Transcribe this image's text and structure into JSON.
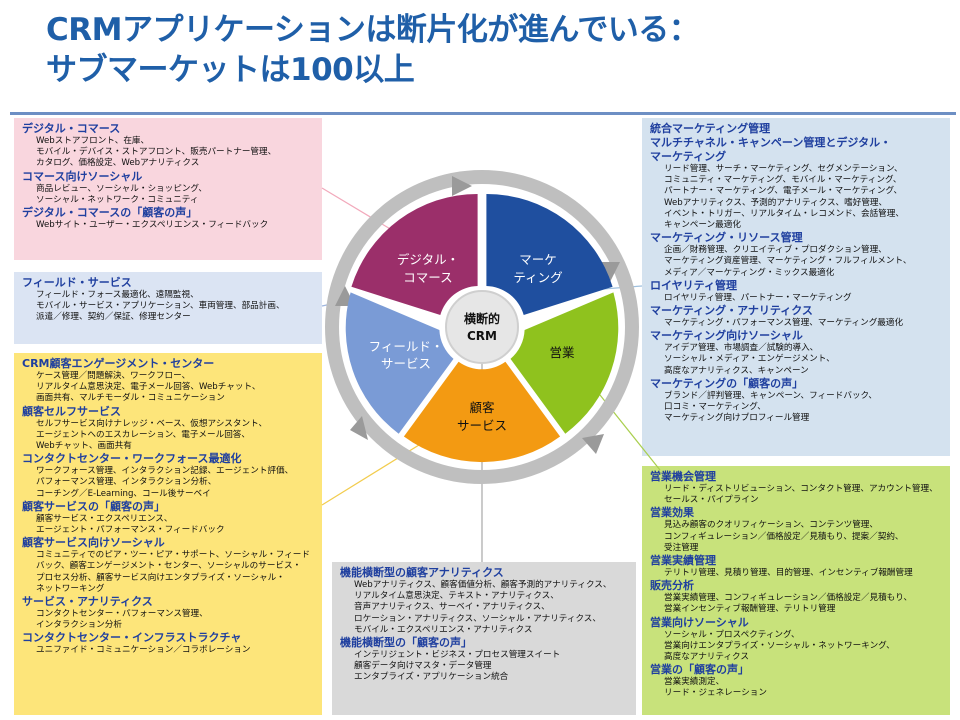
{
  "title": {
    "line1": "CRMアプリケーションは断片化が進んでいる：",
    "line2": "サブマーケットは100以上"
  },
  "colors": {
    "title": "#1f5fa8",
    "heading": "#1f3f9f",
    "digital": "#9b2f6a",
    "marketing": "#1f4f9f",
    "sales": "#8fc21e",
    "service": "#f39a12",
    "field": "#7a9bd6",
    "box_digital": "#f9d6de",
    "box_marketing": "#d4e2ef",
    "box_field": "#dbe4f3",
    "box_service": "#fde57a",
    "box_sales": "#c8e27b",
    "box_analytics": "#d9d9d9"
  },
  "wheel": {
    "center_line1": "横断的",
    "center_line2": "CRM",
    "digital_line1": "デジタル・",
    "digital_line2": "コマース",
    "marketing_line1": "マーケ",
    "marketing_line2": "ティング",
    "sales": "営業",
    "service_line1": "顧客",
    "service_line2": "サービス",
    "field_line1": "フィールド・",
    "field_line2": "サービス"
  },
  "boxes": {
    "digital": {
      "h1": "デジタル・コマース",
      "l1": "Webストアフロント、在庫、",
      "l2": "モバイル・デバイス・ストアフロント、販売パートナー管理、",
      "l3": "カタログ、価格設定、Webアナリティクス",
      "h2": "コマース向けソーシャル",
      "l4": "商品レビュー、ソーシャル・ショッピング、",
      "l5": "ソーシャル・ネットワーク・コミュニティ",
      "h3": "デジタル・コマースの「顧客の声」",
      "l6": "Webサイト・ユーザー・エクスペリエンス・フィードバック"
    },
    "field": {
      "h1": "フィールド・サービス",
      "l1": "フィールド・フォース最適化、遠隔監視、",
      "l2": "モバイル・サービス・アプリケーション、車両管理、部品計画、",
      "l3": "派遣／修理、契約／保証、修理センター"
    },
    "service": {
      "h1": "CRM顧客エンゲージメント・センター",
      "l1": "ケース管理／問題解決、ワークフロー、",
      "l2": "リアルタイム意思決定、電子メール回答、Webチャット、",
      "l3": "画面共有、マルチモーダル・コミュニケーション",
      "h2": "顧客セルフサービス",
      "l4": "セルフサービス向けナレッジ・ベース、仮想アシスタント、",
      "l5": "エージェントへのエスカレーション、電子メール回答、",
      "l6": "Webチャット、画面共有",
      "h3": "コンタクトセンター・ワークフォース最適化",
      "l7": "ワークフォース管理、インタラクション記録、エージェント評価、",
      "l8": "パフォーマンス管理、インタラクション分析、",
      "l9": "コーチング／E-Learning、コール後サーベイ",
      "h4": "顧客サービスの「顧客の声」",
      "l10": "顧客サービス・エクスペリエンス、",
      "l11": "エージェント・パフォーマンス・フィードバック",
      "h5": "顧客サービス向けソーシャル",
      "l12": "コミュニティでのピア・ツー・ピア・サポート、ソーシャル・フィード",
      "l13": "バック、顧客エンゲージメント・センター、ソーシャルのサービス・",
      "l14": "プロセス分析、顧客サービス向けエンタプライズ・ソーシャル・",
      "l15": "ネットワーキング",
      "h6": "サービス・アナリティクス",
      "l16": "コンタクトセンター・パフォーマンス管理、",
      "l17": "インタラクション分析",
      "h7": "コンタクトセンター・インフラストラクチャ",
      "l18": "ユニファイド・コミュニケーション／コラボレーション"
    },
    "analytics": {
      "h1": "機能横断型の顧客アナリティクス",
      "l1": "Webアナリティクス、顧客価値分析、顧客予測的アナリティクス、",
      "l2": "リアルタイム意思決定、テキスト・アナリティクス、",
      "l3": "音声アナリティクス、サーベイ・アナリティクス、",
      "l4": "ロケーション・アナリティクス、ソーシャル・アナリティクス、",
      "l5": "モバイル・エクスペリエンス・アナリティクス",
      "h2": "機能横断型の「顧客の声」",
      "l6": "インテリジェント・ビジネス・プロセス管理スイート",
      "l7": "顧客データ向けマスタ・データ管理",
      "l8": "エンタプライズ・アプリケーション統合"
    },
    "marketing": {
      "h1": "統合マーケティング管理",
      "h2a": "マルチチャネル・キャンペーン管理とデジタル・",
      "h2b": "マーケティング",
      "l1": "リード管理、サーチ・マーケティング、セグメンテーション、",
      "l2": "コミュニティ・マーケティング、モバイル・マーケティング、",
      "l3": "パートナー・マーケティング、電子メール・マーケティング、",
      "l4": "Webアナリティクス、予測的アナリティクス、嗜好管理、",
      "l5": "イベント・トリガー、リアルタイム・レコメンド、会話管理、",
      "l6": "キャンペーン最適化",
      "h3": "マーケティング・リソース管理",
      "l7": "企画／財務管理、クリエイティブ・プロダクション管理、",
      "l8": "マーケティング資産管理、マーケティング・フルフィルメント、",
      "l9": "メディア／マーケティング・ミックス最適化",
      "h4": "ロイヤリティ管理",
      "l10": "ロイヤリティ管理、パートナー・マーケティング",
      "h5": "マーケティング・アナリティクス",
      "l11": "マーケティング・パフォーマンス管理、マーケティング最適化",
      "h6": "マーケティング向けソーシャル",
      "l12": "アイデア管理、市場調査／試験的導入、",
      "l13": "ソーシャル・メディア・エンゲージメント、",
      "l14": "高度なアナリティクス、キャンペーン",
      "h7": "マーケティングの「顧客の声」",
      "l15": "ブランド／評判管理、キャンペーン、フィードバック、",
      "l16": "口コミ・マーケティング、",
      "l17": "マーケティング向けプロフィール管理"
    },
    "sales": {
      "h1": "営業機会管理",
      "l1": "リード・ディストリビューション、コンタクト管理、アカウント管理、",
      "l2": "セールス・パイプライン",
      "h2": "営業効果",
      "l3": "見込み顧客のクオリフィケーション、コンテンツ管理、",
      "l4": "コンフィギュレーション／価格設定／見積もり、提案／契約、",
      "l5": "受注管理",
      "h3": "営業実績管理",
      "l6": "テリトリ管理、見積り管理、目的管理、インセンティブ報酬管理",
      "h4": "販売分析",
      "l7": "営業実績管理、コンフィギュレーション／価格設定／見積もり、",
      "l8": "営業インセンティブ報酬管理、テリトリ管理",
      "h5": "営業向けソーシャル",
      "l9": "ソーシャル・プロスペクティング、",
      "l10": "営業向けエンタプライズ・ソーシャル・ネットワーキング、",
      "l11": "高度なアナリティクス",
      "h6": "営業の「顧客の声」",
      "l12": "営業実績測定、",
      "l13": "リード・ジェネレーション"
    }
  }
}
